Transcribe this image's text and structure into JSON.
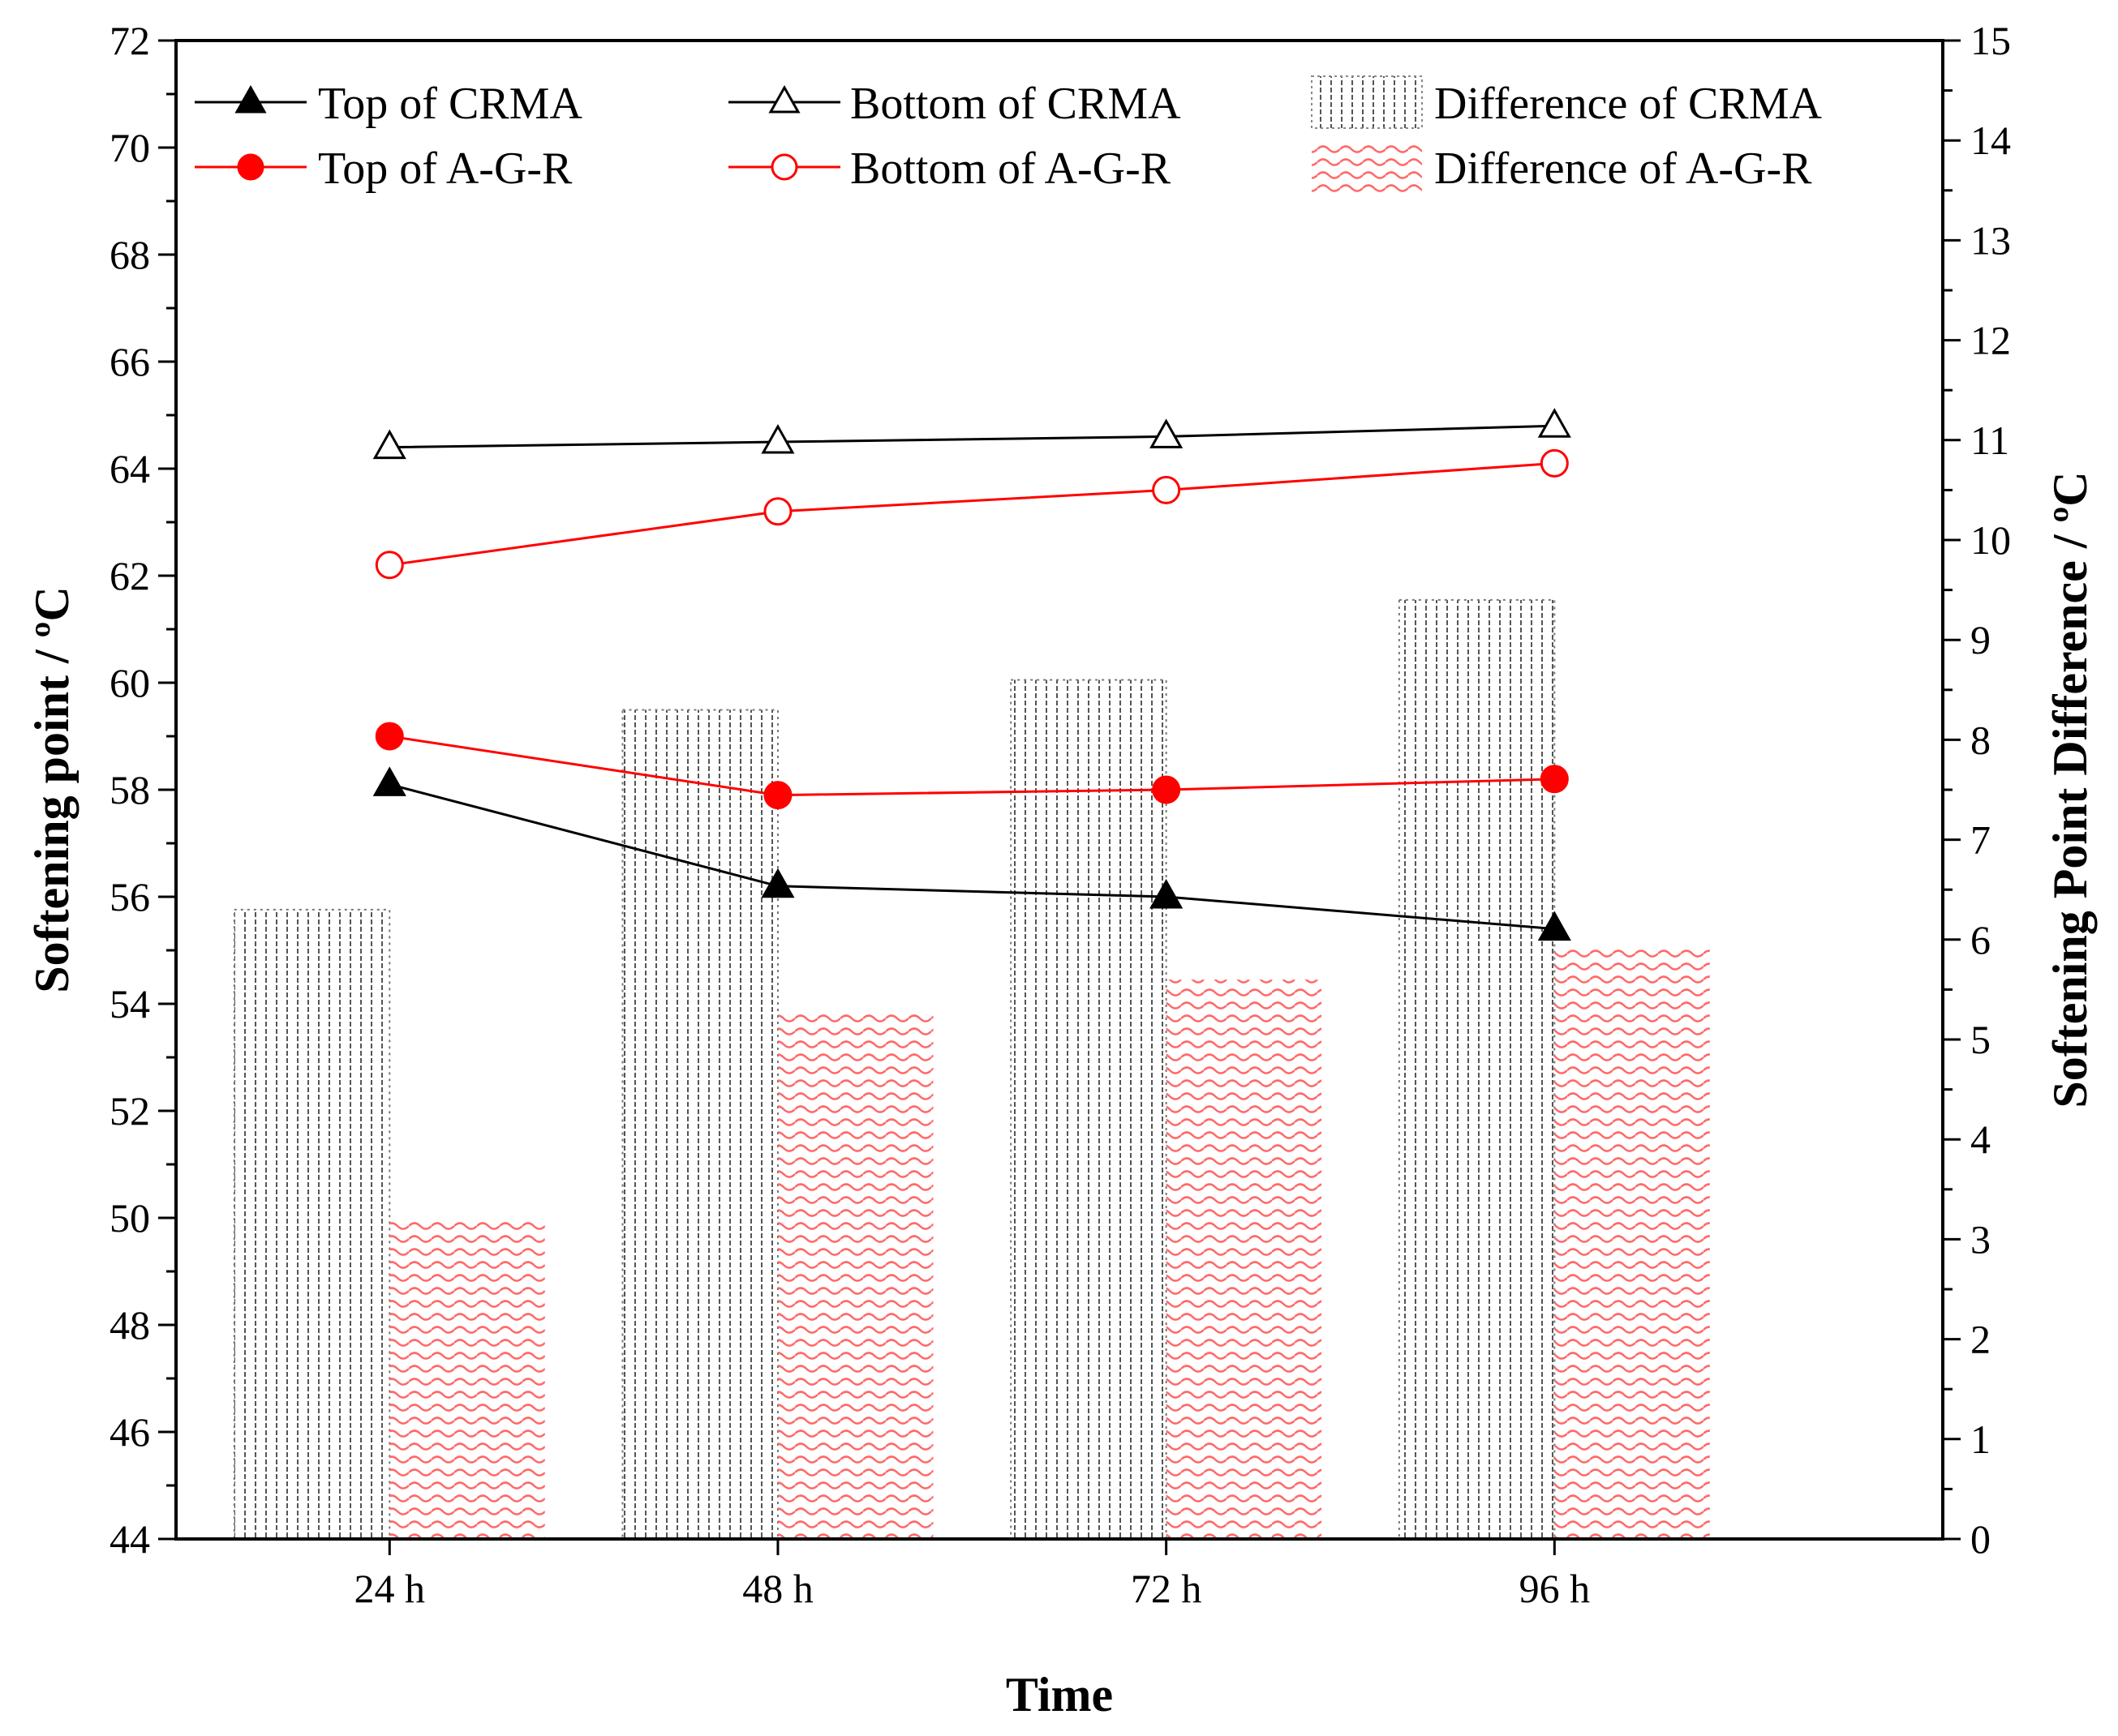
{
  "chart_data": {
    "type": "bar+line",
    "categories": [
      "24 h",
      "48 h",
      "72 h",
      "96 h"
    ],
    "xlabel": "Time",
    "ylabel": "Softening point / ºC",
    "ylabel2": "Softening Point Difference / ºC",
    "ylim": [
      44,
      72
    ],
    "ylim2": [
      0,
      15
    ],
    "yticks": [
      "44",
      "46",
      "48",
      "50",
      "52",
      "54",
      "56",
      "58",
      "60",
      "62",
      "64",
      "66",
      "68",
      "70",
      "72"
    ],
    "yticks2": [
      "0",
      "1",
      "2",
      "3",
      "4",
      "5",
      "6",
      "7",
      "8",
      "9",
      "10",
      "11",
      "12",
      "13",
      "14",
      "15"
    ],
    "line_series": [
      {
        "name": "Top of CRMA",
        "values": [
          58.1,
          56.2,
          56.0,
          55.4
        ],
        "color": "#000000",
        "marker": "triangle",
        "filled": true
      },
      {
        "name": "Bottom of CRMA",
        "values": [
          64.4,
          64.5,
          64.6,
          64.8
        ],
        "color": "#000000",
        "marker": "triangle",
        "filled": false
      },
      {
        "name": "Top of A-G-R",
        "values": [
          59.0,
          57.9,
          58.0,
          58.2
        ],
        "color": "#ff0000",
        "marker": "circle",
        "filled": true
      },
      {
        "name": "Bottom of A-G-R",
        "values": [
          62.2,
          63.2,
          63.6,
          64.1
        ],
        "color": "#ff0000",
        "marker": "circle",
        "filled": false
      }
    ],
    "bar_series": [
      {
        "name": "Difference of CRMA",
        "values": [
          6.3,
          8.3,
          8.6,
          9.4
        ],
        "color": "#555555",
        "pattern": "vertical-dotted-lines"
      },
      {
        "name": "Difference of A-G-R",
        "values": [
          3.2,
          5.3,
          5.6,
          5.9
        ],
        "color": "#ff4444",
        "pattern": "wavy"
      }
    ]
  }
}
